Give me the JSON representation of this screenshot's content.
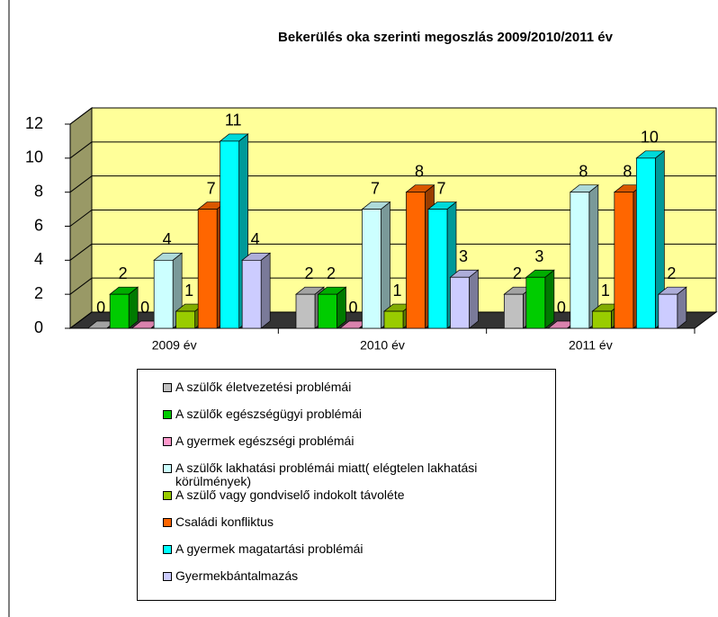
{
  "chart_data": {
    "type": "bar3d",
    "title": "Bekerülés oka szerinti megoszlás 2009/2010/2011 év",
    "categories": [
      "2009 év",
      "2010 év",
      "2011 év"
    ],
    "series": [
      {
        "name": "A szülők életvezetési problémái",
        "color": "#c0c0c0",
        "values": [
          0,
          2,
          2
        ]
      },
      {
        "name": "A szülők egészségügyi problémái",
        "color": "#00cc00",
        "values": [
          2,
          2,
          3
        ]
      },
      {
        "name": "A gyermek egészségi problémái",
        "color": "#ff99cc",
        "values": [
          0,
          0,
          0
        ]
      },
      {
        "name": "A szülők lakhatási problémái miatt( elégtelen lakhatási körülmények)",
        "color": "#ccffff",
        "values": [
          4,
          7,
          8
        ]
      },
      {
        "name": "A szülő vagy gondviselő indokolt távoléte",
        "color": "#99cc00",
        "values": [
          1,
          1,
          1
        ]
      },
      {
        "name": "Családi konfliktus",
        "color": "#ff6600",
        "values": [
          7,
          8,
          8
        ]
      },
      {
        "name": "A gyermek magatartási problémái",
        "color": "#00ffff",
        "values": [
          11,
          7,
          10
        ]
      },
      {
        "name": "Gyermekbántalmazás",
        "color": "#ccccff",
        "values": [
          4,
          3,
          2
        ]
      }
    ],
    "ylim": [
      0,
      12
    ],
    "yticks": [
      0,
      2,
      4,
      6,
      8,
      10,
      12
    ],
    "grid": true
  }
}
